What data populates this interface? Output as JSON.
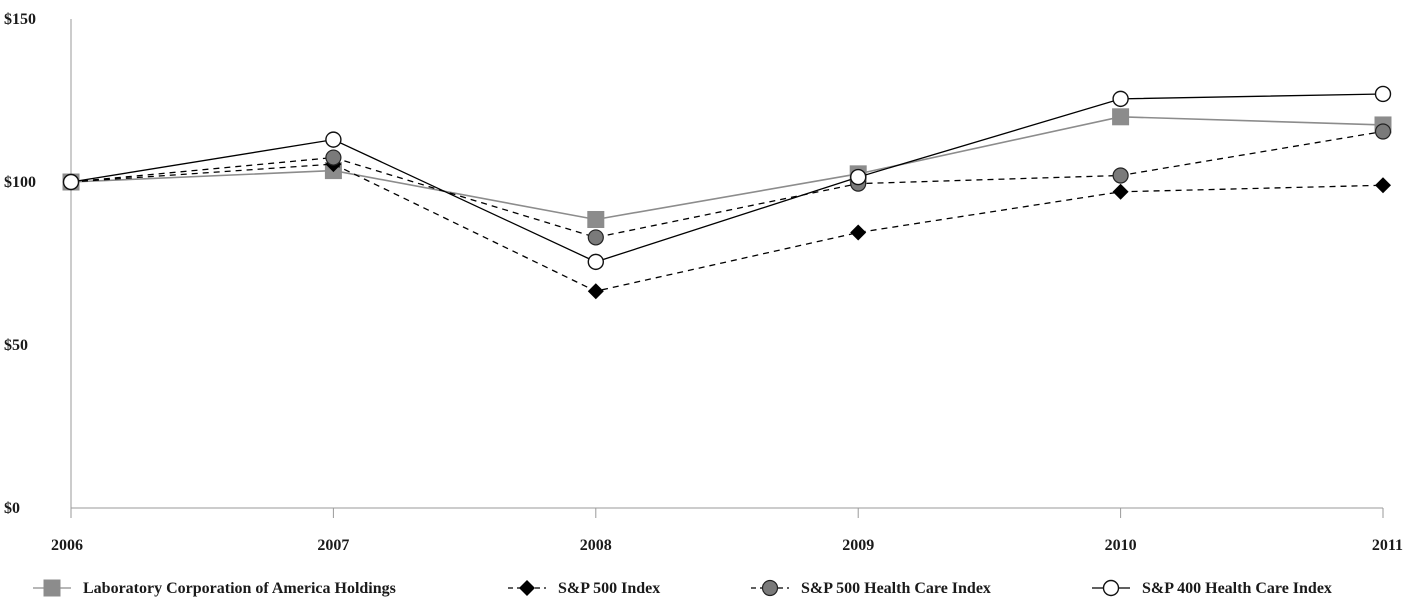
{
  "chart_data": {
    "type": "line",
    "title": "",
    "xlabel": "",
    "ylabel": "",
    "categories": [
      "2006",
      "2007",
      "2008",
      "2009",
      "2010",
      "2011"
    ],
    "ylim": [
      0,
      150
    ],
    "yticks": [
      "$0",
      "$50",
      "$100",
      "$150"
    ],
    "ytick_values": [
      0,
      50,
      100,
      150
    ],
    "grid": false,
    "legend_position": "bottom",
    "series": [
      {
        "name": "Laboratory Corporation of America Holdings",
        "values": [
          100,
          103.5,
          88.5,
          102.5,
          120,
          117.5
        ],
        "color": "#8c8c8c",
        "line_style": "solid",
        "marker": "square"
      },
      {
        "name": "S&P 500 Index",
        "values": [
          100,
          105.5,
          66.5,
          84.5,
          97,
          99
        ],
        "color": "#000000",
        "line_style": "dashed",
        "marker": "diamond"
      },
      {
        "name": "S&P 500 Health Care Index",
        "values": [
          100,
          107.5,
          83,
          99.5,
          102,
          115.5
        ],
        "color": "#000000",
        "line_style": "dashed",
        "marker": "circle-filled"
      },
      {
        "name": "S&P 400 Health Care Index",
        "values": [
          100,
          113,
          75.5,
          101.5,
          125.5,
          127
        ],
        "color": "#000000",
        "line_style": "solid",
        "marker": "circle-open"
      }
    ]
  }
}
